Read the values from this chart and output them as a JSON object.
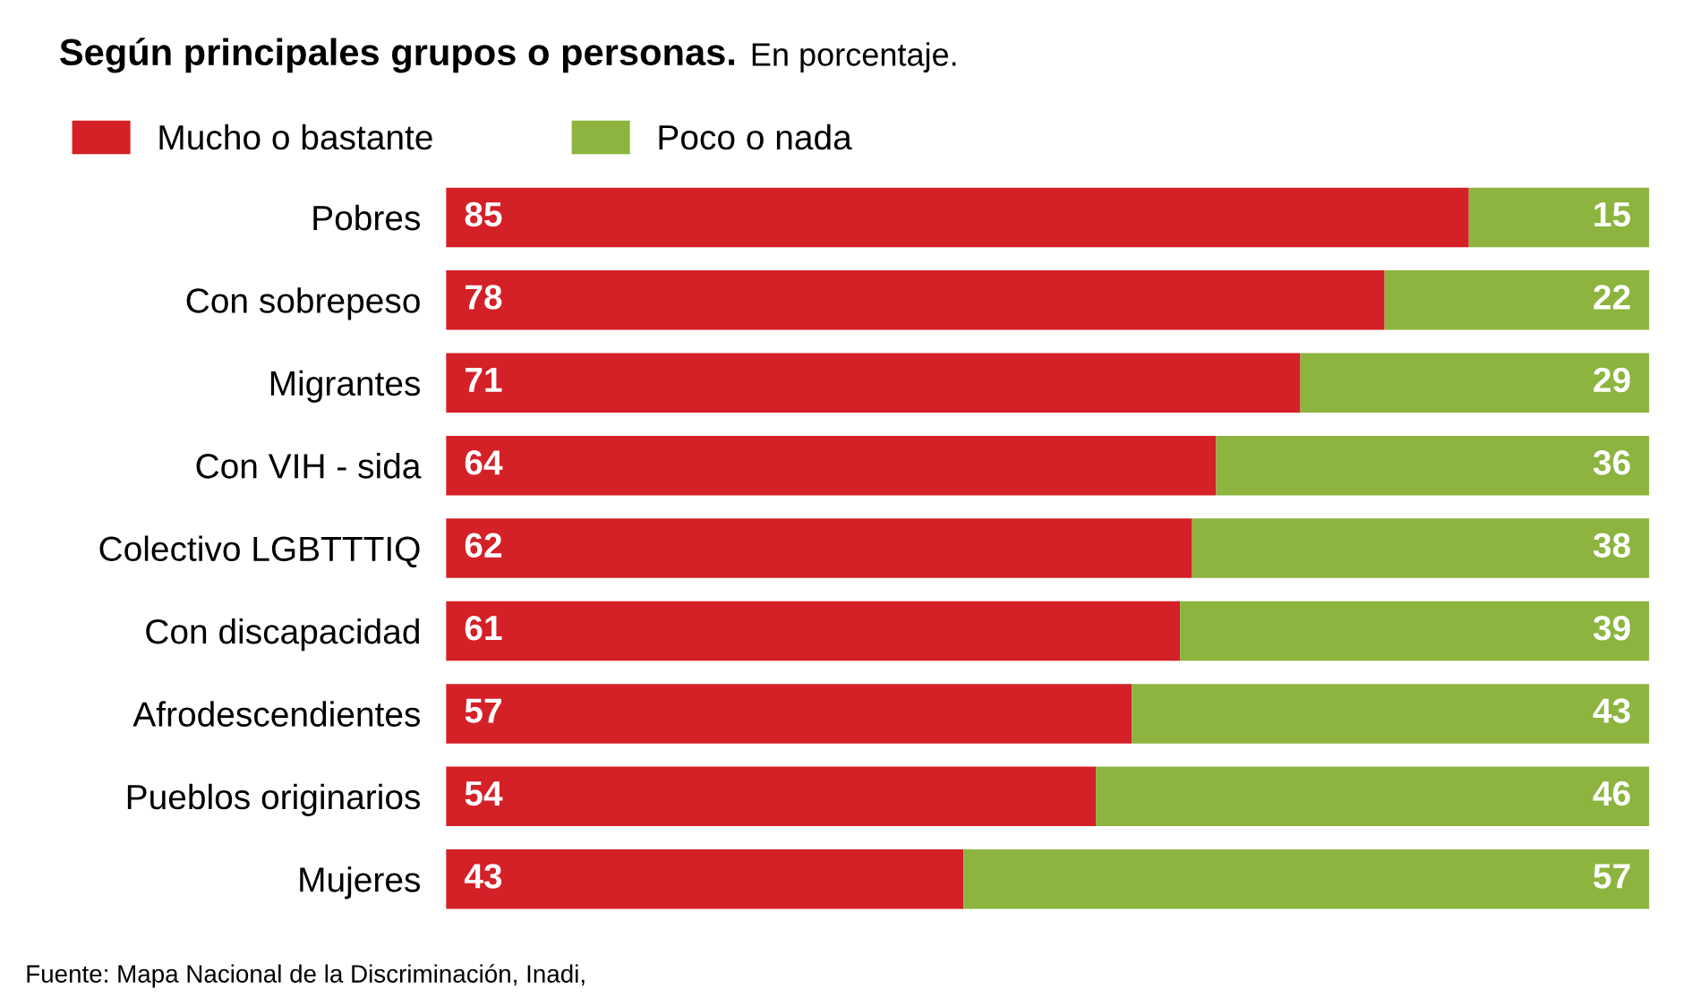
{
  "chart_data": {
    "type": "bar",
    "orientation": "horizontal",
    "stacked": true,
    "title": "Según principales grupos o personas.",
    "subtitle": "En porcentaje.",
    "categories": [
      "Pobres",
      "Con sobrepeso",
      "Migrantes",
      "Con VIH - sida",
      "Colectivo LGBTTTIQ",
      "Con discapacidad",
      "Afrodescendientes",
      "Pueblos originarios",
      "Mujeres"
    ],
    "series": [
      {
        "name": "Mucho o bastante",
        "color": "#d42027",
        "values": [
          85,
          78,
          71,
          64,
          62,
          61,
          57,
          54,
          43
        ]
      },
      {
        "name": "Poco o nada",
        "color": "#8cb43f",
        "values": [
          15,
          22,
          29,
          36,
          38,
          39,
          43,
          46,
          57
        ]
      }
    ],
    "data_labels": true,
    "legend": "top left",
    "grid": false,
    "annotations": [
      "Fuente: Mapa Nacional de la Discriminación, Inadi,"
    ]
  }
}
